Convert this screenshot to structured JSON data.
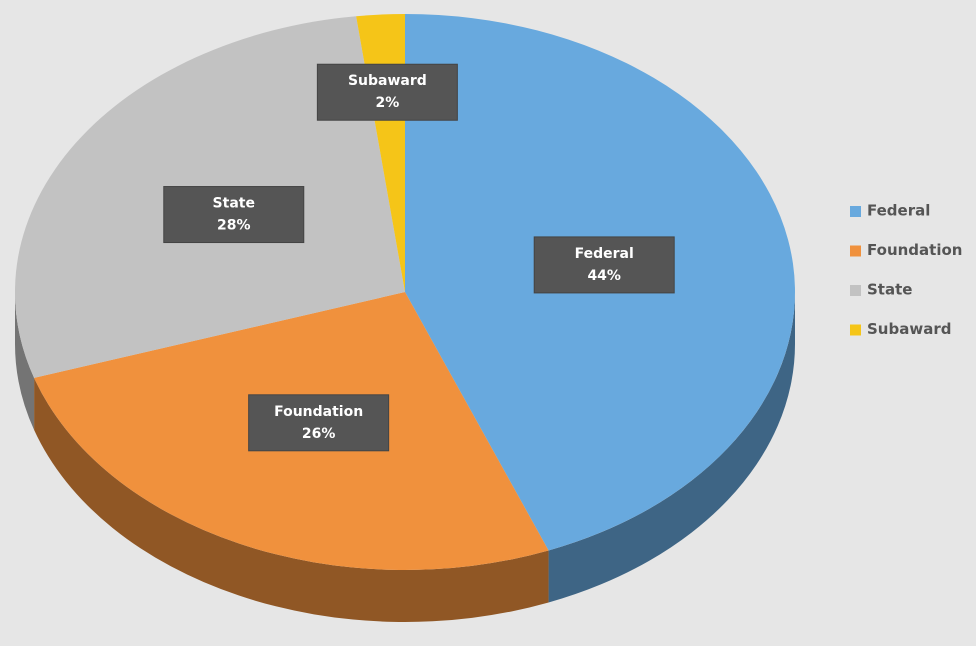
{
  "chart_data": {
    "type": "pie",
    "categories": [
      "Federal",
      "Foundation",
      "State",
      "Subaward"
    ],
    "values": [
      44,
      26,
      28,
      2
    ],
    "value_labels": [
      "44%",
      "26%",
      "28%",
      "2%"
    ],
    "colors": [
      "#68a9de",
      "#f0913d",
      "#c2c2c2",
      "#f5c518"
    ],
    "legend": "right"
  }
}
